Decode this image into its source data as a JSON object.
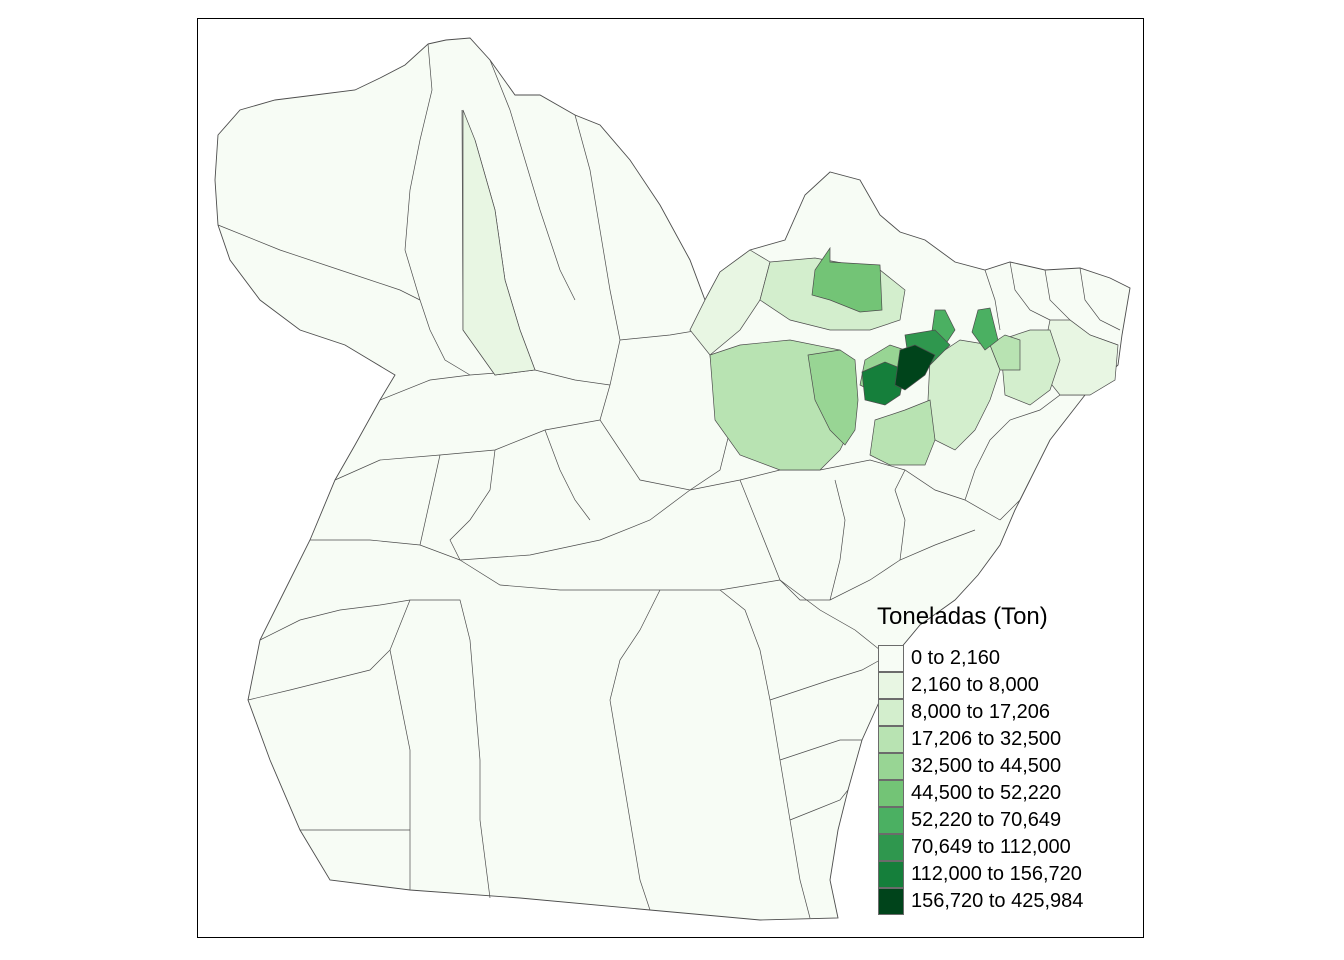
{
  "legend": {
    "title": "Toneladas (Ton)",
    "classes": [
      {
        "label": "0 to 2,160",
        "color": "#f7fcf5"
      },
      {
        "label": "2,160 to 8,000",
        "color": "#e8f6e3"
      },
      {
        "label": "8,000 to 17,206",
        "color": "#d3eecd"
      },
      {
        "label": "17,206 to 32,500",
        "color": "#b8e3b2"
      },
      {
        "label": "32,500 to 44,500",
        "color": "#98d594"
      },
      {
        "label": "44,500 to 52,220",
        "color": "#73c476"
      },
      {
        "label": "52,220 to 70,649",
        "color": "#4bb062"
      },
      {
        "label": "70,649 to 112,000",
        "color": "#2f974e"
      },
      {
        "label": "112,000 to 156,720",
        "color": "#157f3b"
      },
      {
        "label": "156,720 to 425,984",
        "color": "#00441b"
      }
    ]
  },
  "map": {
    "outline_color": "#4d4d4d"
  }
}
